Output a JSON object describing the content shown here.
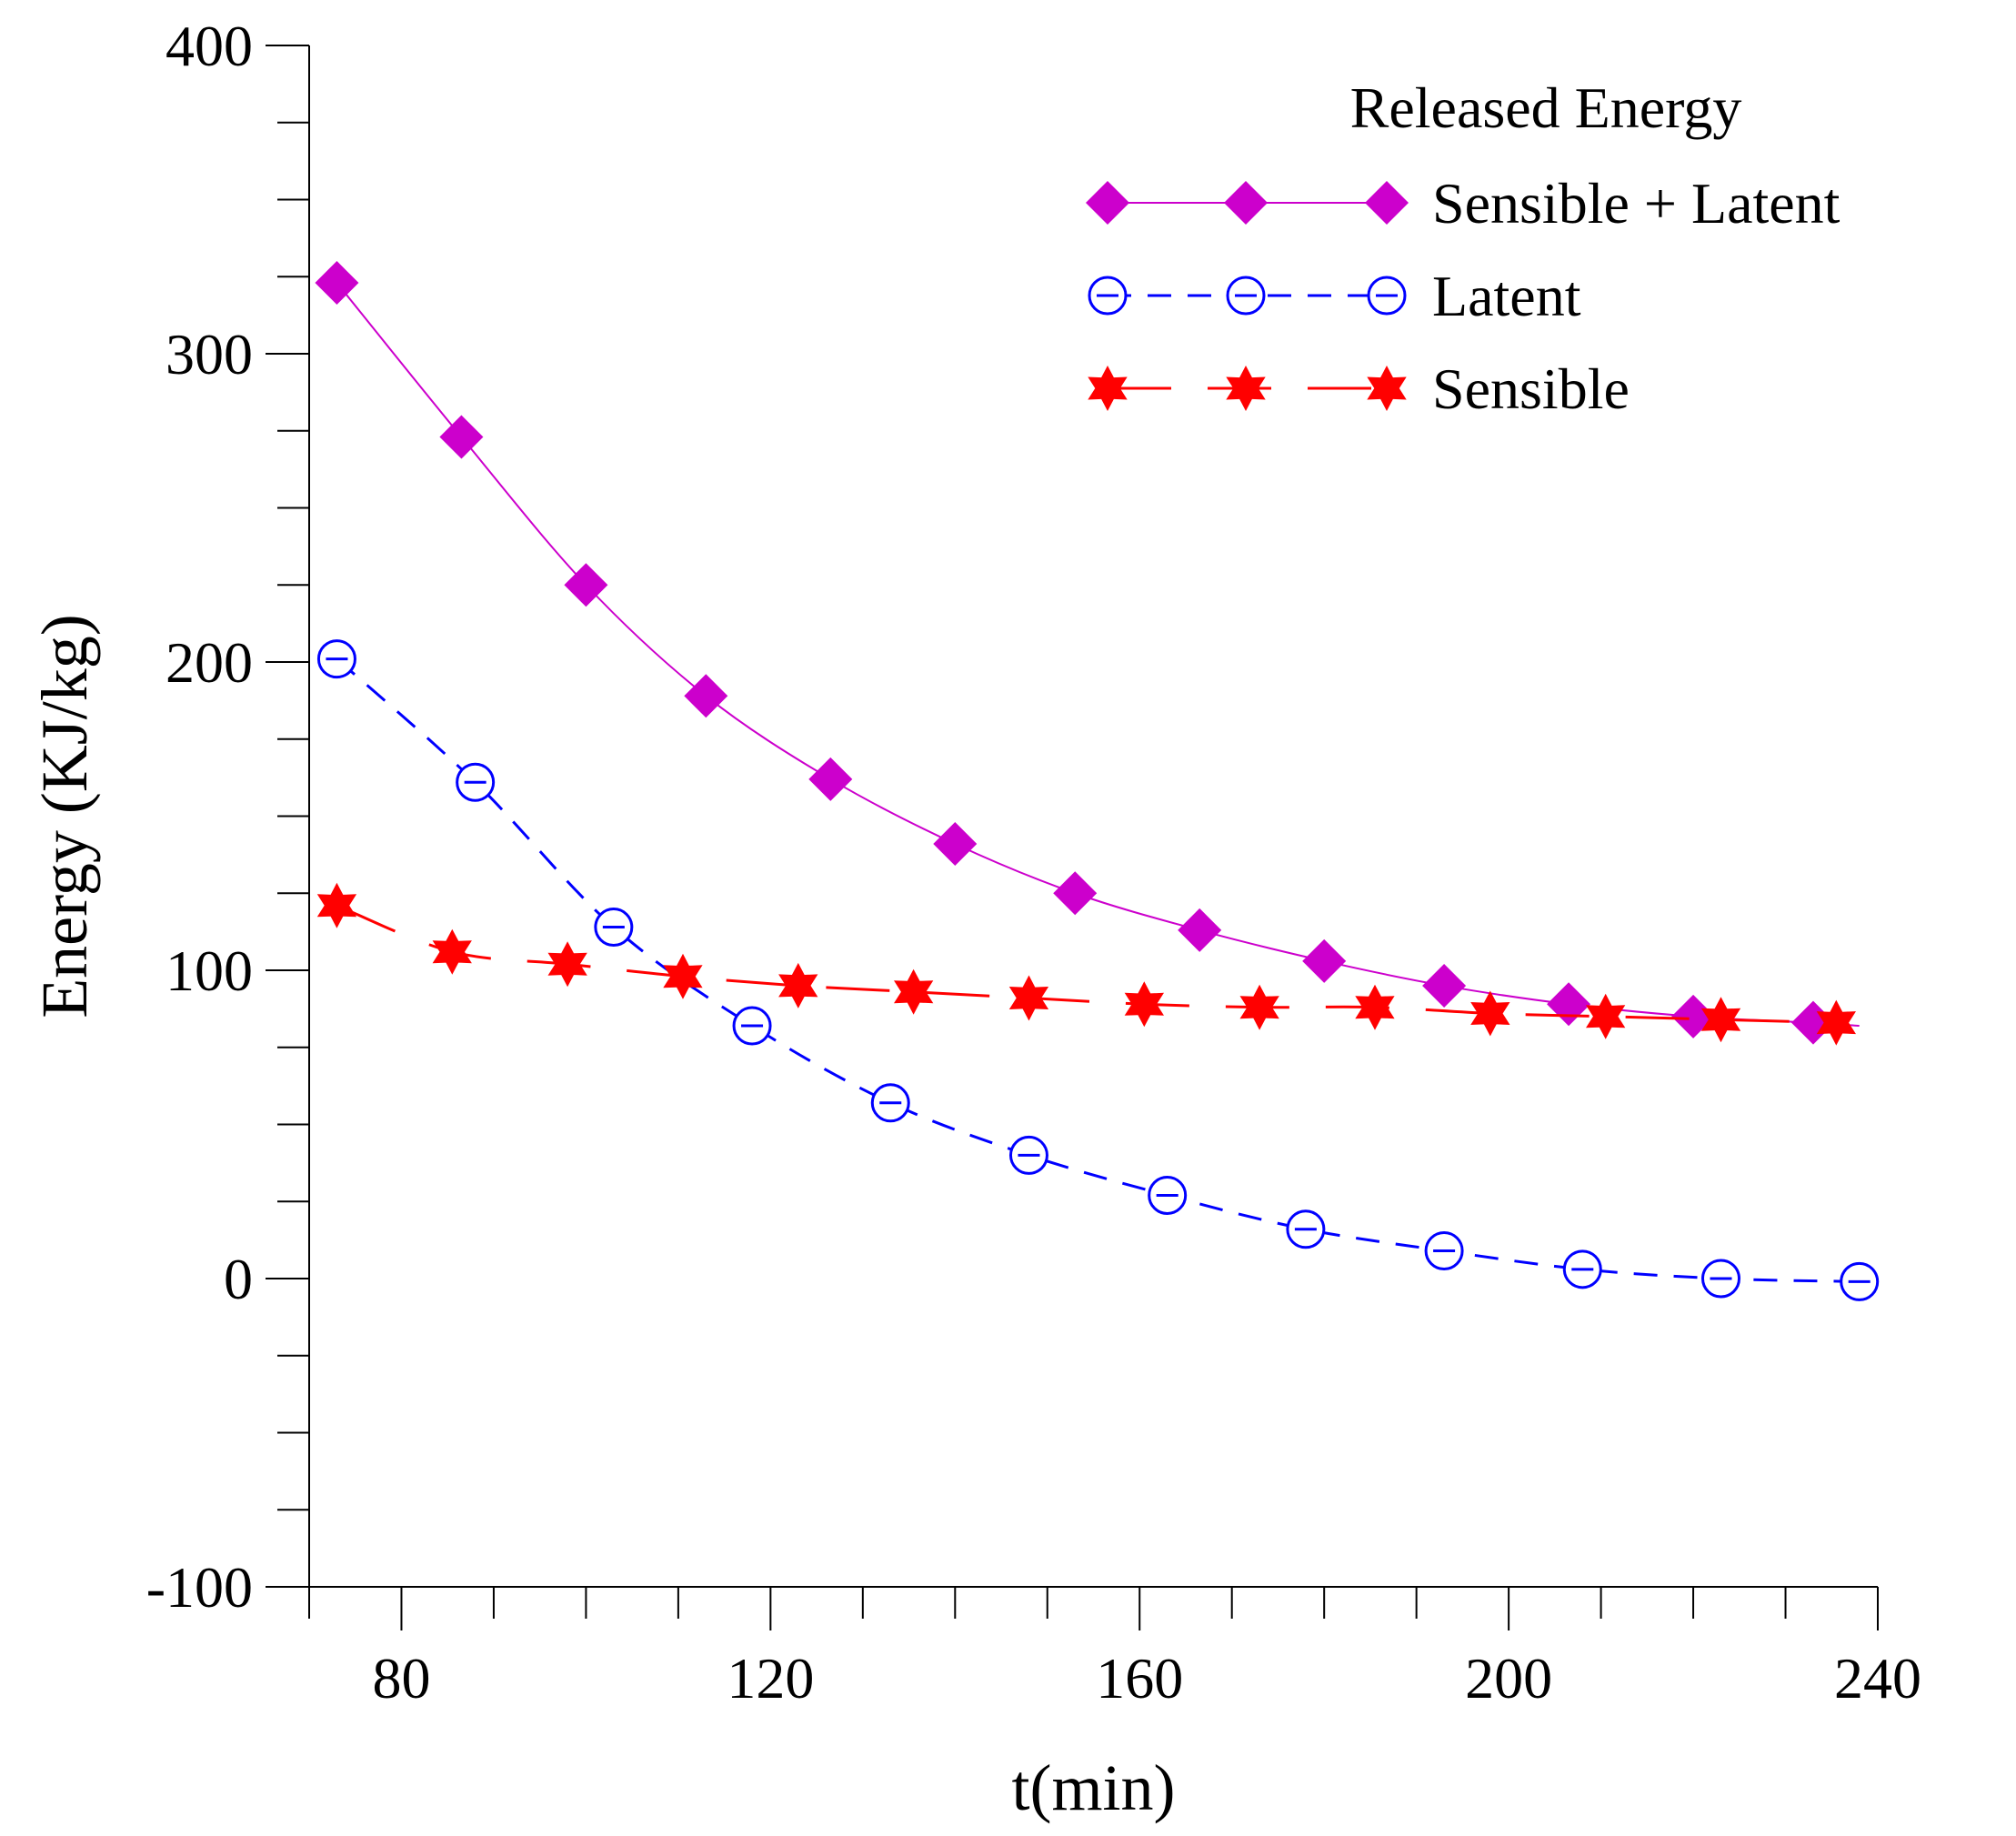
{
  "chart_data": {
    "type": "line",
    "title": "",
    "xlabel": "t(min)",
    "ylabel": "Energy (KJ/kg)",
    "xlim": [
      70,
      240
    ],
    "ylim": [
      -100,
      400
    ],
    "xticks": [
      80,
      120,
      160,
      200,
      240
    ],
    "xtick_labels": [
      "80",
      "120",
      "160",
      "200",
      "240"
    ],
    "x_minor_step": 10,
    "yticks": [
      -100,
      0,
      100,
      200,
      300,
      400
    ],
    "ytick_labels": [
      "-100",
      "0",
      "100",
      "200",
      "300",
      "400"
    ],
    "y_minor_step": 25,
    "grid": false,
    "legend": {
      "title": "Released Energy",
      "placement": "top-right"
    },
    "series": [
      {
        "name": "Sensible + Latent",
        "color": "#cc00cc",
        "marker": "diamond",
        "line_style": "solid",
        "x": [
          73,
          86.5,
          100,
          113,
          126.5,
          140,
          153,
          166.5,
          180,
          193,
          206.5,
          220,
          233
        ],
        "y": [
          323,
          273,
          225,
          189,
          162,
          141,
          125,
          113,
          103,
          95,
          89,
          85,
          83
        ],
        "curve_end": {
          "x": 238,
          "y": 82
        }
      },
      {
        "name": "Latent",
        "color": "#0000ff",
        "marker": "circle-open",
        "line_style": "dashed",
        "x": [
          73,
          88,
          103,
          118,
          133,
          148,
          163,
          178,
          193,
          208,
          223,
          238
        ],
        "y": [
          201,
          161,
          114,
          82,
          57,
          40,
          27,
          16,
          9,
          3,
          0,
          -1
        ]
      },
      {
        "name": "Sensible",
        "color": "#ff0000",
        "marker": "star",
        "line_style": "long-dash",
        "x": [
          73,
          85.5,
          98,
          110.5,
          123,
          135.5,
          148,
          160.5,
          173,
          185.5,
          198,
          210.5,
          223,
          235.5
        ],
        "y": [
          121,
          106,
          102,
          98,
          95,
          93,
          91,
          89,
          88,
          88,
          86,
          85,
          84,
          83
        ]
      }
    ]
  }
}
